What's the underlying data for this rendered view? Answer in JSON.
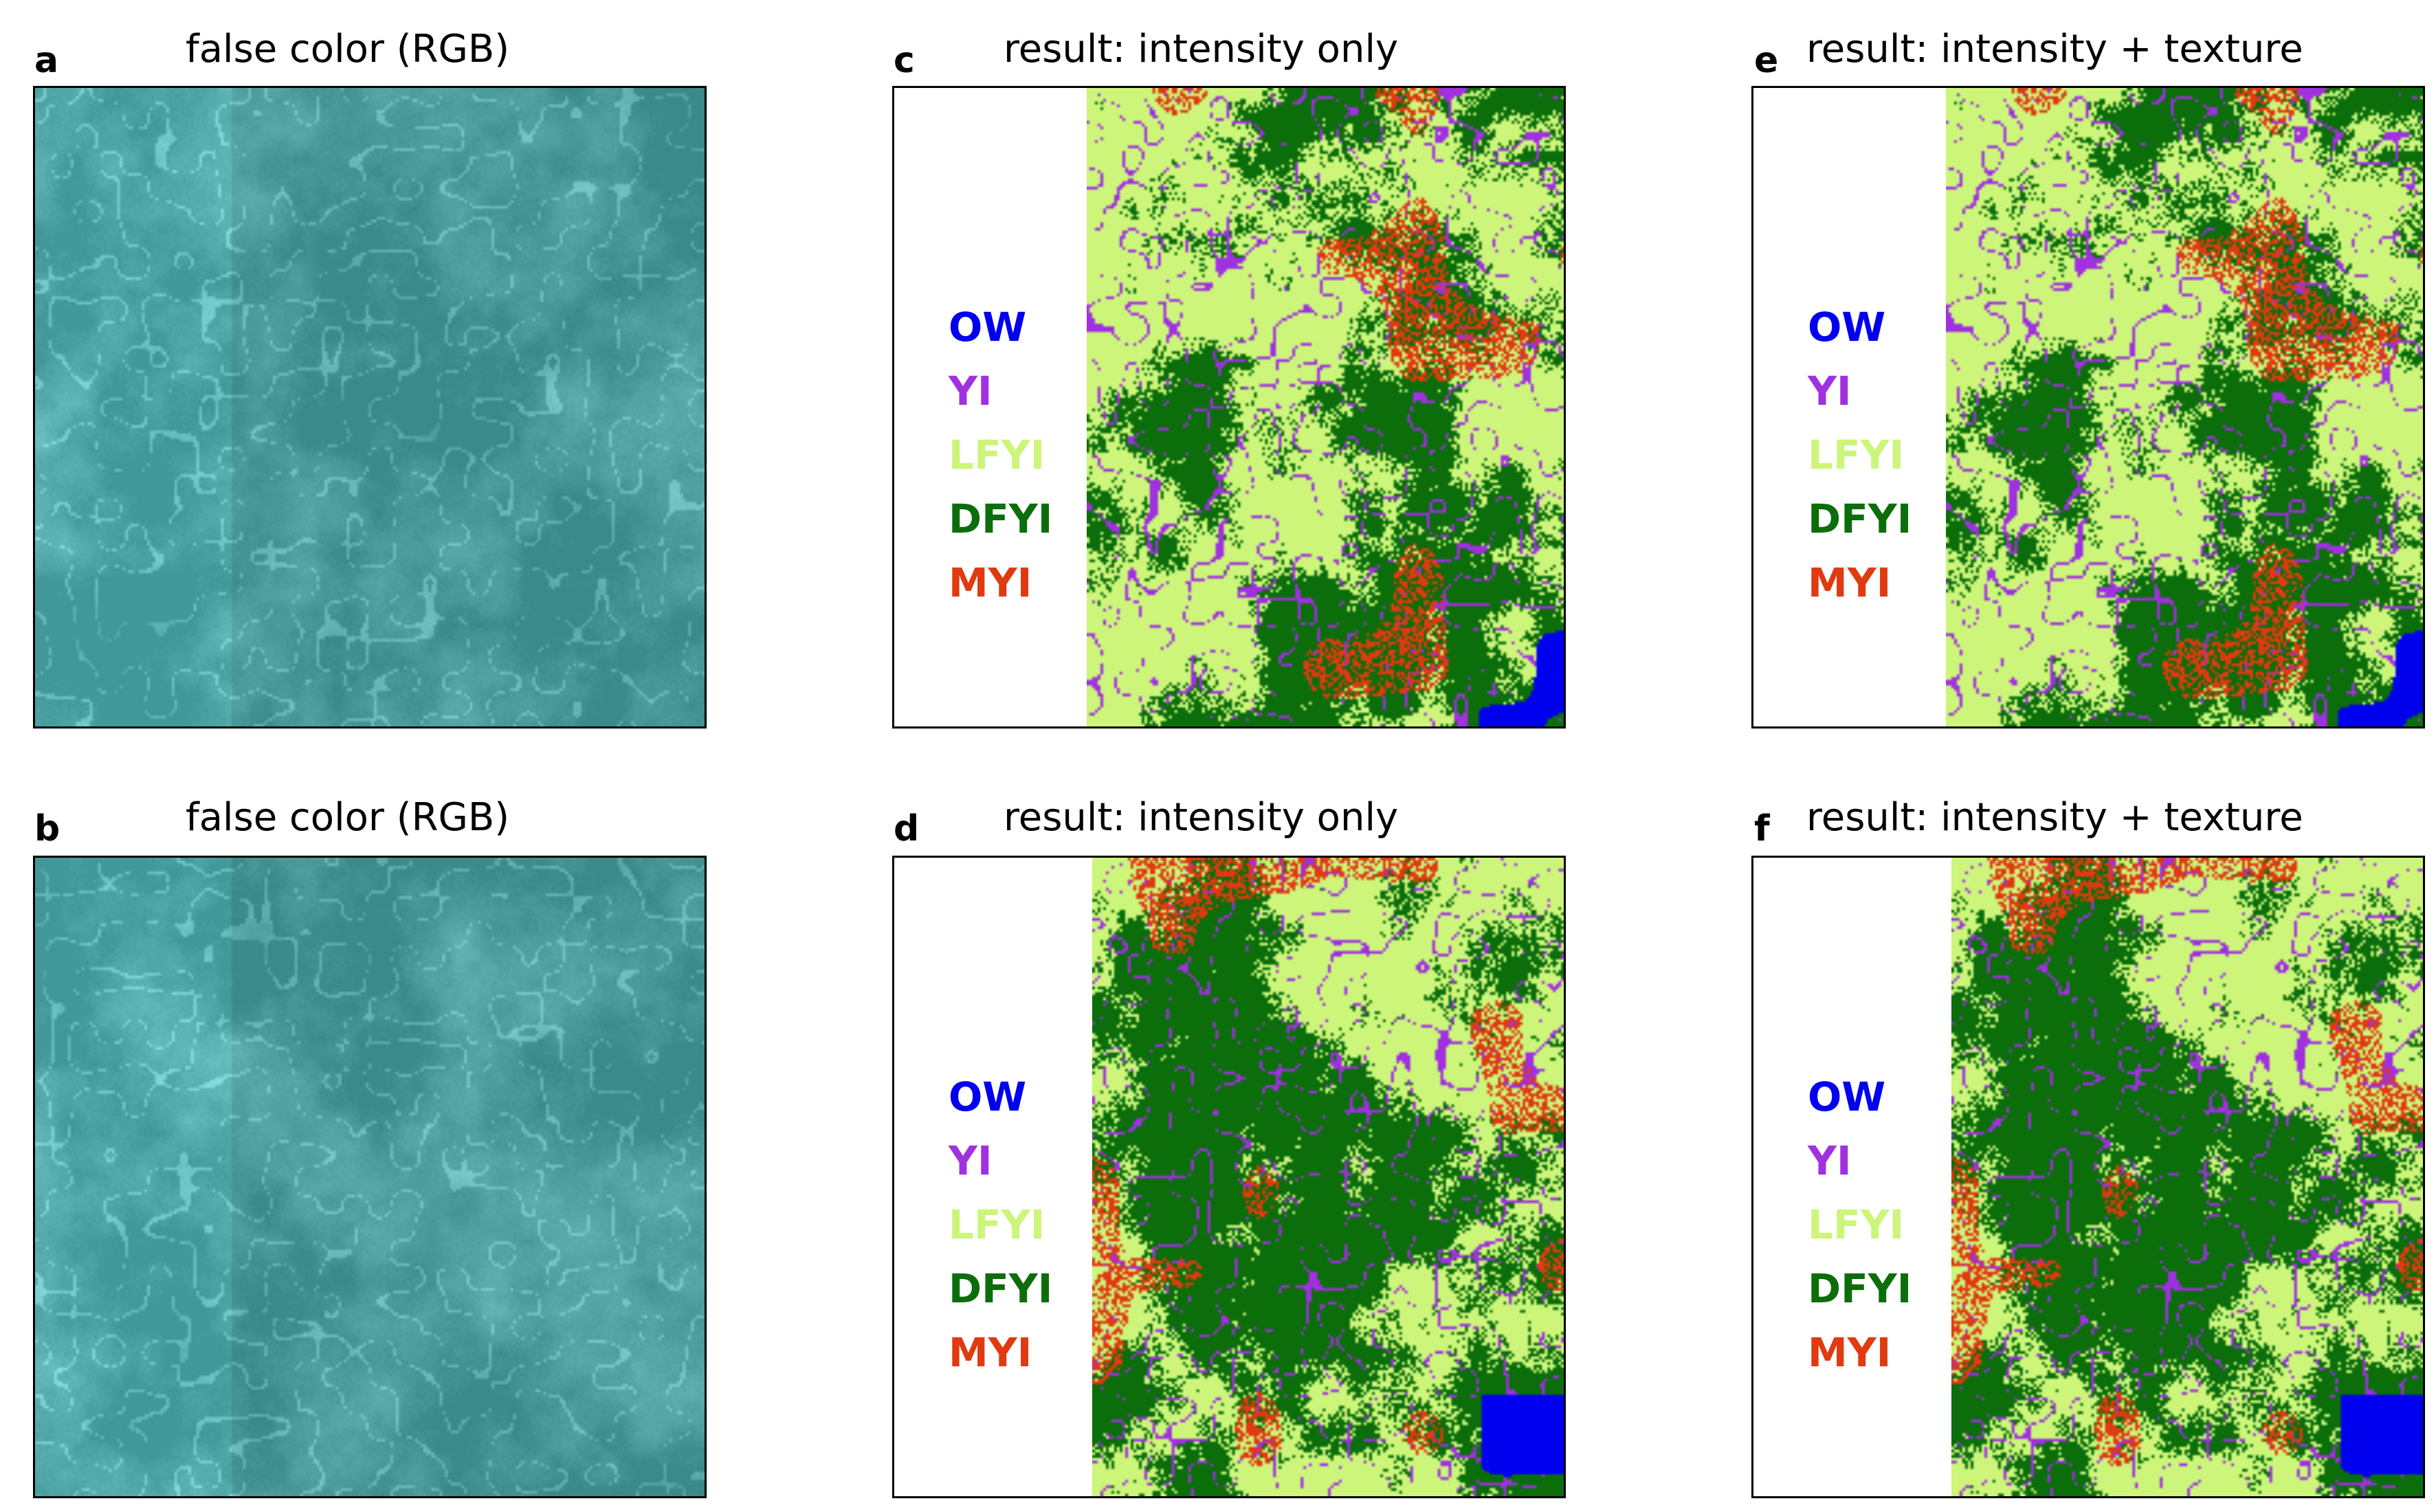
{
  "panels": [
    {
      "id": "a",
      "letter": "a",
      "title": "false color (RGB)",
      "kind": "rgb",
      "seed": 11
    },
    {
      "id": "b",
      "letter": "b",
      "title": "false color (RGB)",
      "kind": "rgb",
      "seed": 23
    },
    {
      "id": "c",
      "letter": "c",
      "title": "result: intensity only",
      "kind": "class",
      "seed": 37
    },
    {
      "id": "d",
      "letter": "d",
      "title": "result: intensity only",
      "kind": "class",
      "seed": 41
    },
    {
      "id": "e",
      "letter": "e",
      "title": "result: intensity + texture",
      "kind": "class",
      "seed": 37
    },
    {
      "id": "f",
      "letter": "f",
      "title": "result: intensity + texture",
      "kind": "class",
      "seed": 41
    }
  ],
  "legend": [
    {
      "label": "OW",
      "color": "#0000ee"
    },
    {
      "label": "YI",
      "color": "#a030e0"
    },
    {
      "label": "LFYI",
      "color": "#ccf57a"
    },
    {
      "label": "DFYI",
      "color": "#0b6e0b"
    },
    {
      "label": "MYI",
      "color": "#e03a10"
    }
  ],
  "colors": {
    "ow": "#0000ee",
    "yi": "#a030e0",
    "lfyi": "#ccf57a",
    "dfyi": "#0b6e0b",
    "myi": "#e03a10",
    "rgb_base": "#3d8f8f",
    "rgb_light": "#7fd0d0"
  }
}
